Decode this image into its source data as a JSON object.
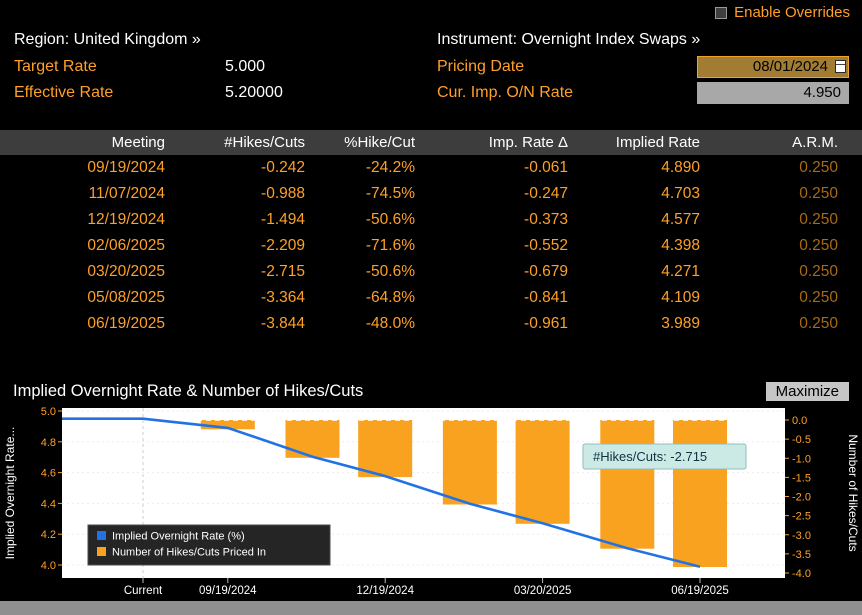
{
  "colors": {
    "bg": "#000000",
    "amber": "#FFA028",
    "white": "#FFFFFF",
    "header_bg": "#3D3D3D",
    "blue": "#2272E6",
    "bar_orange": "#F9A21F",
    "tooltip_bg": "#CBE9E5",
    "tooltip_text": "#0E3440",
    "arm_dim": "#A96A14"
  },
  "top": {
    "enable_overrides": "Enable Overrides",
    "region_label": "Region:",
    "region_value": "United Kingdom »",
    "instrument_label": "Instrument:",
    "instrument_value": "Overnight Index Swaps »",
    "target_rate_label": "Target Rate",
    "target_rate_value": "5.000",
    "pricing_date_label": "Pricing Date",
    "pricing_date_value": "08/01/2024",
    "effective_rate_label": "Effective Rate",
    "effective_rate_value": "5.20000",
    "cur_imp_label": "Cur. Imp. O/N Rate",
    "cur_imp_value": "4.950"
  },
  "table": {
    "headers": [
      "Meeting",
      "#Hikes/Cuts",
      "%Hike/Cut",
      "Imp. Rate Δ",
      "Implied Rate",
      "A.R.M."
    ],
    "rows": [
      [
        "09/19/2024",
        "-0.242",
        "-24.2%",
        "-0.061",
        "4.890",
        "0.250"
      ],
      [
        "11/07/2024",
        "-0.988",
        "-74.5%",
        "-0.247",
        "4.703",
        "0.250"
      ],
      [
        "12/19/2024",
        "-1.494",
        "-50.6%",
        "-0.373",
        "4.577",
        "0.250"
      ],
      [
        "02/06/2025",
        "-2.209",
        "-71.6%",
        "-0.552",
        "4.398",
        "0.250"
      ],
      [
        "03/20/2025",
        "-2.715",
        "-50.6%",
        "-0.679",
        "4.271",
        "0.250"
      ],
      [
        "05/08/2025",
        "-3.364",
        "-64.8%",
        "-0.841",
        "4.109",
        "0.250"
      ],
      [
        "06/19/2025",
        "-3.844",
        "-48.0%",
        "-0.961",
        "3.989",
        "0.250"
      ]
    ]
  },
  "chart": {
    "maximize_label": "Maximize",
    "tooltip": "#Hikes/Cuts: -2.715"
  },
  "chart_data": {
    "type": "line+bar",
    "title": "Implied Overnight Rate & Number of Hikes/Cuts",
    "x_tick_labels": [
      "Current",
      "09/19/2024",
      "12/19/2024",
      "03/20/2025",
      "06/19/2025"
    ],
    "left_axis": {
      "label": "Implied Overnight Rate...",
      "ticks": [
        5.0,
        4.8,
        4.6,
        4.4,
        4.2,
        4.0
      ],
      "range": [
        3.92,
        5.02
      ]
    },
    "right_axis": {
      "label": "Number of Hikes/Cuts",
      "ticks": [
        0.0,
        -0.5,
        -1.0,
        -1.5,
        -2.0,
        -2.5,
        -3.0,
        -3.5,
        -4.0
      ],
      "range": [
        -4.07,
        0.17
      ]
    },
    "legend_position": "lower-left",
    "series": [
      {
        "name": "Implied Overnight Rate (%)",
        "type": "line",
        "x": [
          "Current",
          "09/19/2024",
          "11/07/2024",
          "12/19/2024",
          "02/06/2025",
          "03/20/2025",
          "05/08/2025",
          "06/19/2025"
        ],
        "values": [
          4.95,
          4.89,
          4.703,
          4.577,
          4.398,
          4.271,
          4.109,
          3.989
        ]
      },
      {
        "name": "Number of Hikes/Cuts Priced In",
        "type": "bar",
        "x": [
          "09/19/2024",
          "11/07/2024",
          "12/19/2024",
          "02/06/2025",
          "03/20/2025",
          "05/08/2025",
          "06/19/2025"
        ],
        "values": [
          -0.242,
          -0.988,
          -1.494,
          -2.209,
          -2.715,
          -3.364,
          -3.844
        ]
      }
    ]
  }
}
